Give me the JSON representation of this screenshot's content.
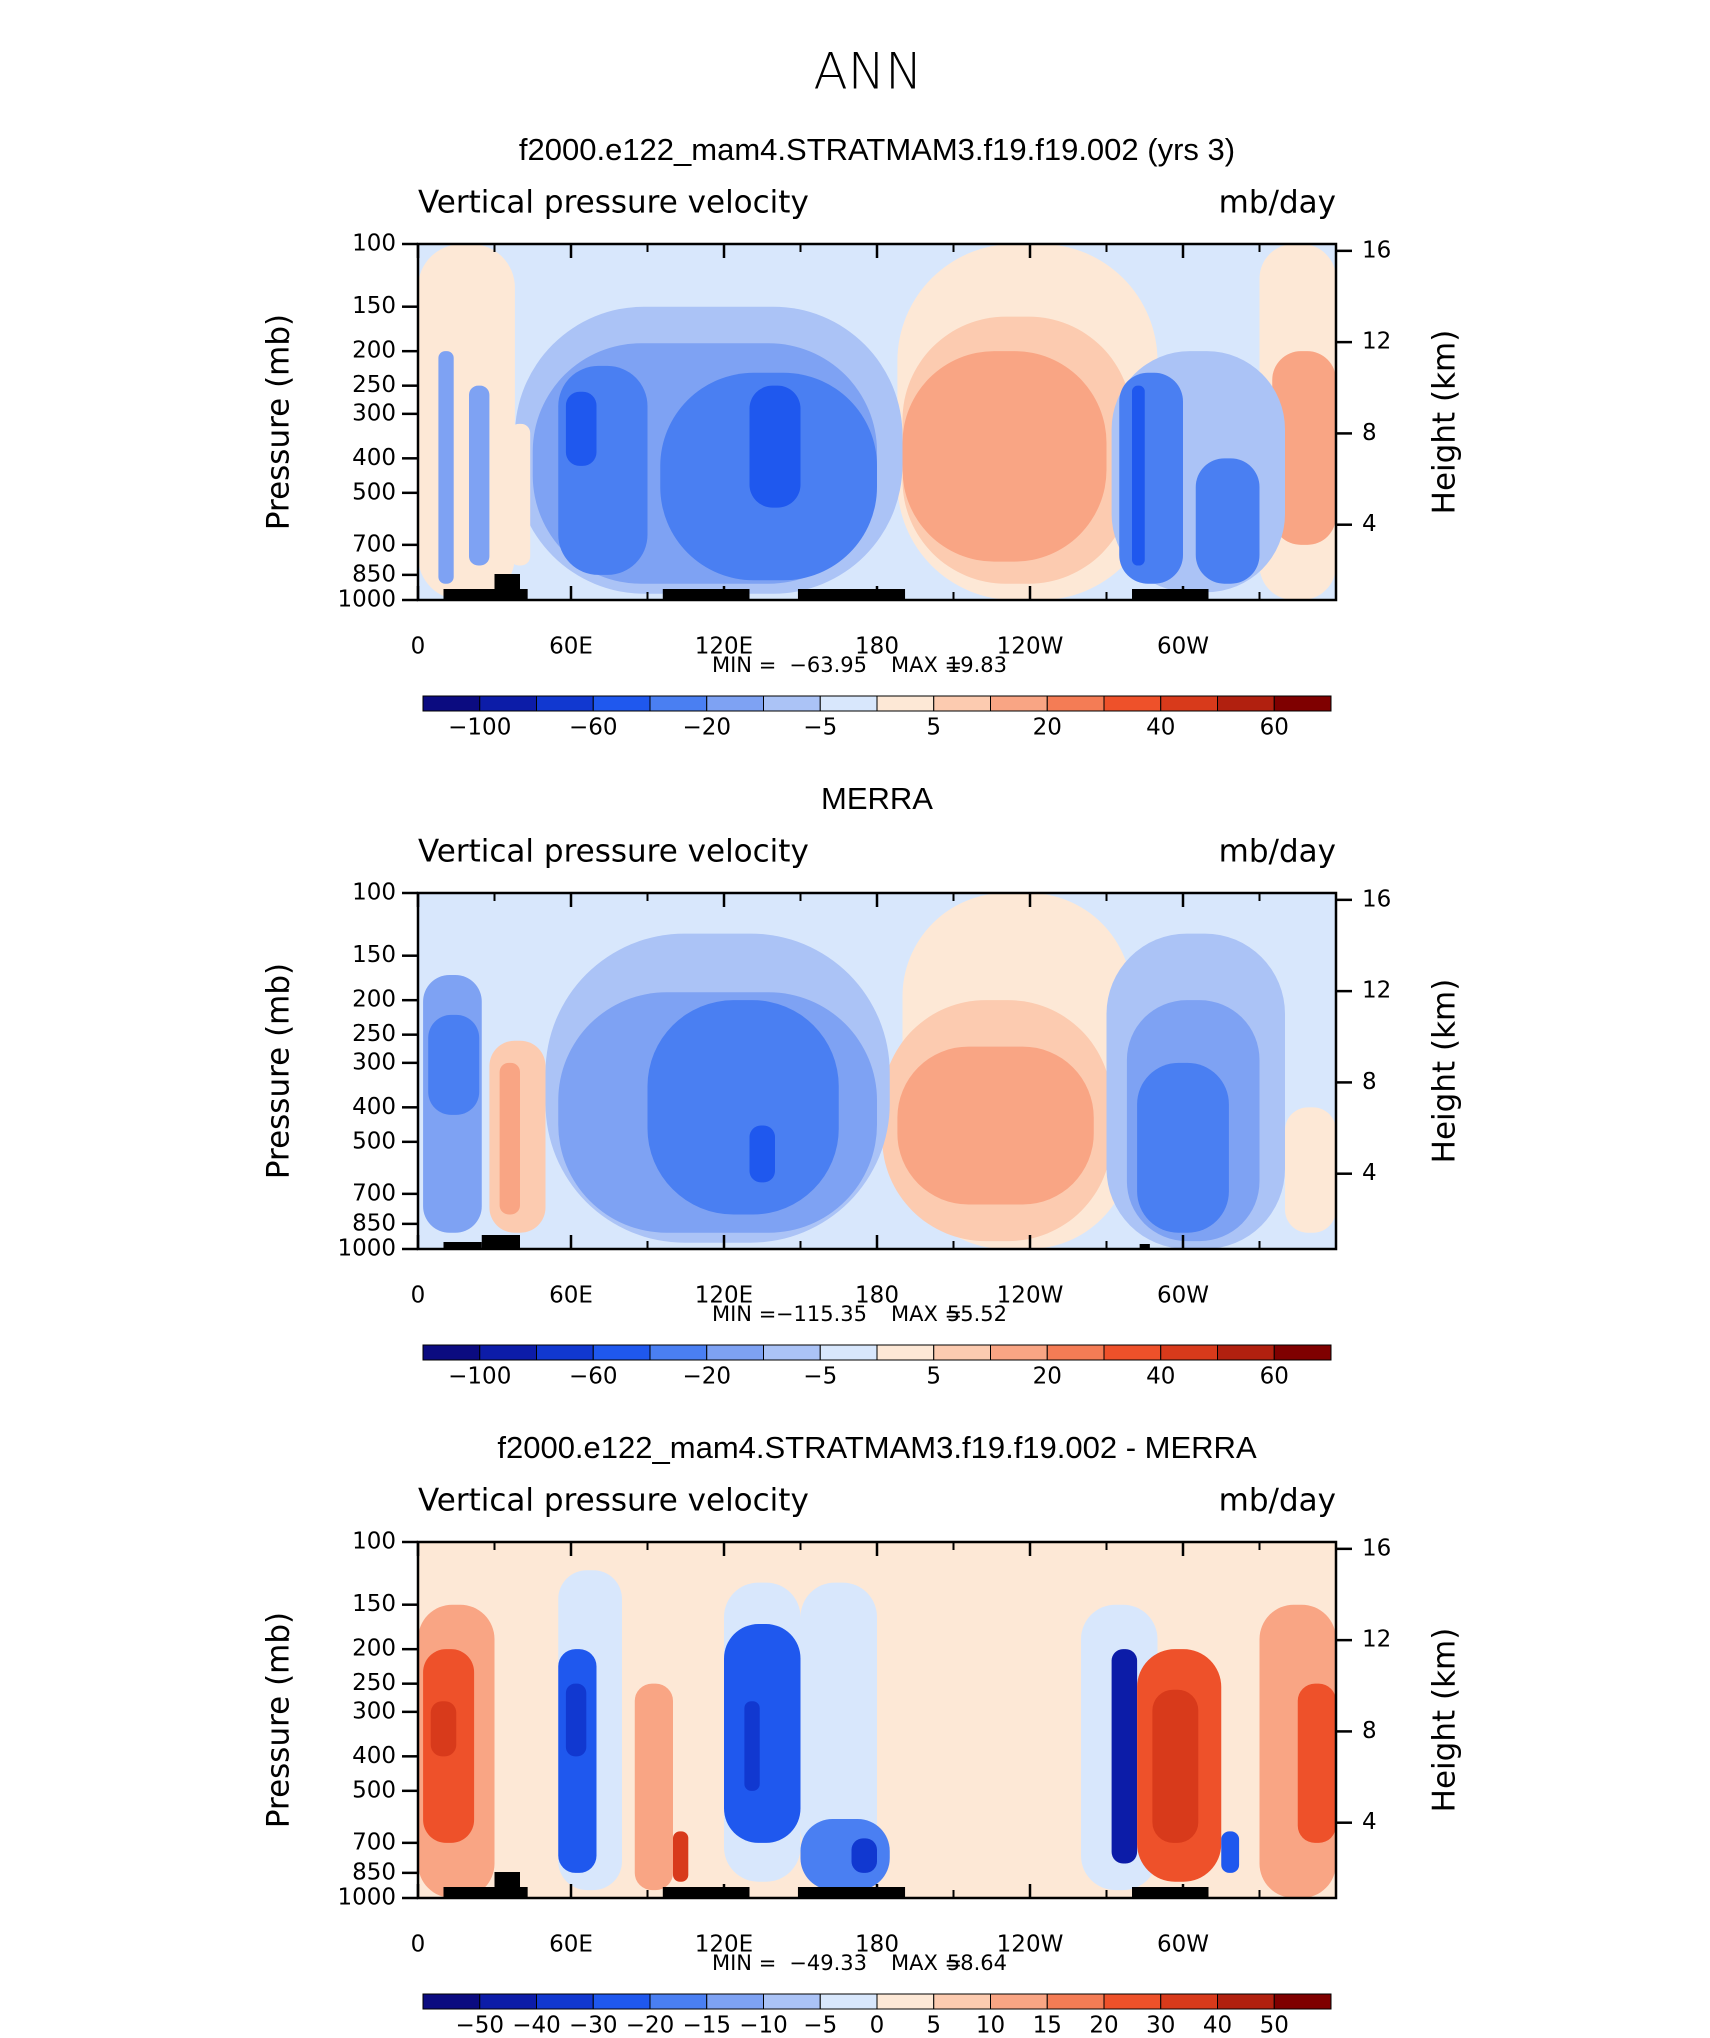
{
  "title": "ANN",
  "chart_data": [
    {
      "type": "contour",
      "title": "f2000.e122_mam4.STRATMAM3.f19.f19.002 (yrs 3)",
      "left_label": "Vertical pressure velocity",
      "right_label": "mb/day",
      "ylabel": "Pressure (mb)",
      "y2label": "Height (km)",
      "xlim": [
        0,
        360
      ],
      "xticks": [
        0,
        {
          "value": 60,
          "label": "60E"
        },
        {
          "value": 120,
          "label": "120E"
        },
        180,
        {
          "value": 240,
          "label": "120W"
        },
        {
          "value": 300,
          "label": "60W"
        }
      ],
      "minor_xticks": [
        30,
        90,
        150,
        210,
        270,
        330
      ],
      "ylim": [
        1000,
        100
      ],
      "y_log": true,
      "yticks": [
        100,
        150,
        200,
        250,
        300,
        400,
        500,
        700,
        850,
        1000
      ],
      "y2lim": [
        0.7,
        16.3
      ],
      "y2ticks": [
        16,
        12,
        8,
        4
      ],
      "stats": [
        {
          "label": "MIN =",
          "value": -63.95,
          "value_label": "−63.95"
        },
        {
          "label": "MAX =",
          "value": 19.83,
          "value_label": "19.83"
        }
      ],
      "colorbar": {
        "levels": [
          -100,
          -80,
          -60,
          -40,
          -20,
          -10,
          -5,
          0,
          5,
          10,
          20,
          30,
          40,
          50,
          60
        ],
        "colors": [
          "#0b0b80",
          "#0c1ca8",
          "#1138d0",
          "#1f58ee",
          "#4a7ff2",
          "#7ea2f3",
          "#abc3f6",
          "#d8e7fc",
          "#fde8d6",
          "#fccbb0",
          "#f9a584",
          "#f47c55",
          "#ee512a",
          "#d83a1b",
          "#b1200f",
          "#7f0000"
        ],
        "ticks": [
          {
            "value": -100,
            "label": "−100"
          },
          {
            "value": -60,
            "label": "−60"
          },
          {
            "value": -20,
            "label": "−20"
          },
          {
            "value": -5,
            "label": "−5"
          },
          5,
          20,
          40,
          60
        ]
      },
      "features": [
        {
          "lon": [
            0,
            360
          ],
          "p": [
            100,
            1000
          ],
          "value": -3
        },
        {
          "lon": [
            0,
            38
          ],
          "p": [
            100,
            1000
          ],
          "value": 3
        },
        {
          "lon": [
            188,
            290
          ],
          "p": [
            100,
            1000
          ],
          "value": 3
        },
        {
          "lon": [
            330,
            360
          ],
          "p": [
            100,
            1000
          ],
          "value": 3
        },
        {
          "lon": [
            190,
            280
          ],
          "p": [
            160,
            900
          ],
          "value": 7
        },
        {
          "lon": [
            190,
            270
          ],
          "p": [
            200,
            780
          ],
          "value": 15
        },
        {
          "lon": [
            335,
            360
          ],
          "p": [
            200,
            700
          ],
          "value": 15
        },
        {
          "lon": [
            38,
            190
          ],
          "p": [
            150,
            960
          ],
          "value": -7
        },
        {
          "lon": [
            45,
            180
          ],
          "p": [
            190,
            900
          ],
          "value": -15
        },
        {
          "lon": [
            55,
            90
          ],
          "p": [
            220,
            850
          ],
          "value": -30
        },
        {
          "lon": [
            95,
            180
          ],
          "p": [
            230,
            880
          ],
          "value": -30
        },
        {
          "lon": [
            58,
            70
          ],
          "p": [
            260,
            420
          ],
          "value": -50
        },
        {
          "lon": [
            130,
            150
          ],
          "p": [
            250,
            550
          ],
          "value": -50
        },
        {
          "lon": [
            8,
            14
          ],
          "p": [
            200,
            900
          ],
          "value": -15
        },
        {
          "lon": [
            20,
            28
          ],
          "p": [
            250,
            800
          ],
          "value": -15
        },
        {
          "lon": [
            36,
            44
          ],
          "p": [
            320,
            800
          ],
          "value": 5
        },
        {
          "lon": [
            272,
            340
          ],
          "p": [
            200,
            950
          ],
          "value": -7
        },
        {
          "lon": [
            275,
            300
          ],
          "p": [
            230,
            900
          ],
          "value": -30
        },
        {
          "lon": [
            280,
            285
          ],
          "p": [
            250,
            800
          ],
          "value": -50
        },
        {
          "lon": [
            305,
            330
          ],
          "p": [
            400,
            900
          ],
          "value": -30
        }
      ]
    },
    {
      "type": "contour",
      "title": "MERRA",
      "left_label": "Vertical pressure velocity",
      "right_label": "mb/day",
      "ylabel": "Pressure (mb)",
      "y2label": "Height (km)",
      "xlim": [
        0,
        360
      ],
      "xticks": [
        0,
        {
          "value": 60,
          "label": "60E"
        },
        {
          "value": 120,
          "label": "120E"
        },
        180,
        {
          "value": 240,
          "label": "120W"
        },
        {
          "value": 300,
          "label": "60W"
        }
      ],
      "minor_xticks": [
        30,
        90,
        150,
        210,
        270,
        330
      ],
      "ylim": [
        1000,
        100
      ],
      "y_log": true,
      "yticks": [
        100,
        150,
        200,
        250,
        300,
        400,
        500,
        700,
        850,
        1000
      ],
      "y2lim": [
        0.7,
        16.3
      ],
      "y2ticks": [
        16,
        12,
        8,
        4
      ],
      "stats": [
        {
          "label": "MIN =",
          "value": -115.35,
          "value_label": "−115.35"
        },
        {
          "label": "MAX =",
          "value": 55.52,
          "value_label": "55.52"
        }
      ],
      "colorbar": {
        "levels": [
          -100,
          -80,
          -60,
          -40,
          -20,
          -10,
          -5,
          0,
          5,
          10,
          20,
          30,
          40,
          50,
          60
        ],
        "colors": [
          "#0b0b80",
          "#0c1ca8",
          "#1138d0",
          "#1f58ee",
          "#4a7ff2",
          "#7ea2f3",
          "#abc3f6",
          "#d8e7fc",
          "#fde8d6",
          "#fccbb0",
          "#f9a584",
          "#f47c55",
          "#ee512a",
          "#d83a1b",
          "#b1200f",
          "#7f0000"
        ],
        "ticks": [
          {
            "value": -100,
            "label": "−100"
          },
          {
            "value": -60,
            "label": "−60"
          },
          {
            "value": -20,
            "label": "−20"
          },
          {
            "value": -5,
            "label": "−5"
          },
          5,
          20,
          40,
          60
        ]
      },
      "features": [
        {
          "lon": [
            0,
            360
          ],
          "p": [
            100,
            1000
          ],
          "value": -3
        },
        {
          "lon": [
            190,
            280
          ],
          "p": [
            100,
            1000
          ],
          "value": 3
        },
        {
          "lon": [
            340,
            360
          ],
          "p": [
            400,
            900
          ],
          "value": 3
        },
        {
          "lon": [
            182,
            272
          ],
          "p": [
            200,
            950
          ],
          "value": 7
        },
        {
          "lon": [
            188,
            265
          ],
          "p": [
            270,
            750
          ],
          "value": 15
        },
        {
          "lon": [
            50,
            185
          ],
          "p": [
            130,
            960
          ],
          "value": -7
        },
        {
          "lon": [
            55,
            180
          ],
          "p": [
            190,
            900
          ],
          "value": -15
        },
        {
          "lon": [
            90,
            165
          ],
          "p": [
            200,
            800
          ],
          "value": -30
        },
        {
          "lon": [
            130,
            140
          ],
          "p": [
            450,
            650
          ],
          "value": -50
        },
        {
          "lon": [
            2,
            25
          ],
          "p": [
            170,
            900
          ],
          "value": -15
        },
        {
          "lon": [
            4,
            24
          ],
          "p": [
            220,
            420
          ],
          "value": -30
        },
        {
          "lon": [
            28,
            50
          ],
          "p": [
            260,
            900
          ],
          "value": 10
        },
        {
          "lon": [
            32,
            40
          ],
          "p": [
            300,
            800
          ],
          "value": 20
        },
        {
          "lon": [
            270,
            340
          ],
          "p": [
            130,
            1000
          ],
          "value": -7
        },
        {
          "lon": [
            278,
            330
          ],
          "p": [
            200,
            950
          ],
          "value": -15
        },
        {
          "lon": [
            282,
            318
          ],
          "p": [
            300,
            900
          ],
          "value": -30
        }
      ]
    },
    {
      "type": "contour",
      "title": "f2000.e122_mam4.STRATMAM3.f19.f19.002 - MERRA",
      "left_label": "Vertical pressure velocity",
      "right_label": "mb/day",
      "ylabel": "Pressure (mb)",
      "y2label": "Height (km)",
      "xlim": [
        0,
        360
      ],
      "xticks": [
        0,
        {
          "value": 60,
          "label": "60E"
        },
        {
          "value": 120,
          "label": "120E"
        },
        180,
        {
          "value": 240,
          "label": "120W"
        },
        {
          "value": 300,
          "label": "60W"
        }
      ],
      "minor_xticks": [
        30,
        90,
        150,
        210,
        270,
        330
      ],
      "ylim": [
        1000,
        100
      ],
      "y_log": true,
      "yticks": [
        100,
        150,
        200,
        250,
        300,
        400,
        500,
        700,
        850,
        1000
      ],
      "y2lim": [
        0.7,
        16.3
      ],
      "y2ticks": [
        16,
        12,
        8,
        4
      ],
      "stats": [
        {
          "label": "MIN =",
          "value": -49.33,
          "value_label": "−49.33"
        },
        {
          "label": "MAX =",
          "value": 58.64,
          "value_label": "58.64"
        }
      ],
      "colorbar": {
        "levels": [
          -50,
          -40,
          -30,
          -20,
          -15,
          -10,
          -5,
          0,
          5,
          10,
          15,
          20,
          30,
          40,
          50
        ],
        "colors": [
          "#0b0b80",
          "#0c1ca8",
          "#1138d0",
          "#1f58ee",
          "#4a7ff2",
          "#7ea2f3",
          "#abc3f6",
          "#d8e7fc",
          "#fde8d6",
          "#fccbb0",
          "#f9a584",
          "#f47c55",
          "#ee512a",
          "#d83a1b",
          "#b1200f",
          "#7f0000"
        ],
        "ticks": [
          {
            "value": -50,
            "label": "−50"
          },
          {
            "value": -40,
            "label": "−40"
          },
          {
            "value": -30,
            "label": "−30"
          },
          {
            "value": -20,
            "label": "−20"
          },
          {
            "value": -15,
            "label": "−15"
          },
          {
            "value": -10,
            "label": "−10"
          },
          {
            "value": -5,
            "label": "−5"
          },
          0,
          5,
          10,
          15,
          20,
          30,
          40,
          50
        ]
      },
      "features": [
        {
          "lon": [
            0,
            360
          ],
          "p": [
            100,
            1000
          ],
          "value": 2
        },
        {
          "lon": [
            260,
            290
          ],
          "p": [
            150,
            950
          ],
          "value": -3
        },
        {
          "lon": [
            150,
            180
          ],
          "p": [
            130,
            800
          ],
          "value": -3
        },
        {
          "lon": [
            55,
            80
          ],
          "p": [
            120,
            950
          ],
          "value": -3
        },
        {
          "lon": [
            120,
            150
          ],
          "p": [
            130,
            900
          ],
          "value": -3
        },
        {
          "lon": [
            0,
            30
          ],
          "p": [
            150,
            1000
          ],
          "value": 12
        },
        {
          "lon": [
            2,
            22
          ],
          "p": [
            200,
            700
          ],
          "value": 25
        },
        {
          "lon": [
            5,
            15
          ],
          "p": [
            280,
            400
          ],
          "value": 35
        },
        {
          "lon": [
            55,
            70
          ],
          "p": [
            200,
            850
          ],
          "value": -25
        },
        {
          "lon": [
            58,
            66
          ],
          "p": [
            250,
            400
          ],
          "value": -35
        },
        {
          "lon": [
            85,
            100
          ],
          "p": [
            250,
            950
          ],
          "value": 12
        },
        {
          "lon": [
            100,
            106
          ],
          "p": [
            650,
            900
          ],
          "value": 35
        },
        {
          "lon": [
            120,
            150
          ],
          "p": [
            170,
            700
          ],
          "value": -20
        },
        {
          "lon": [
            128,
            134
          ],
          "p": [
            280,
            500
          ],
          "value": -35
        },
        {
          "lon": [
            150,
            185
          ],
          "p": [
            600,
            950
          ],
          "value": -15
        },
        {
          "lon": [
            170,
            180
          ],
          "p": [
            680,
            850
          ],
          "value": -30
        },
        {
          "lon": [
            272,
            282
          ],
          "p": [
            200,
            800
          ],
          "value": -40
        },
        {
          "lon": [
            282,
            315
          ],
          "p": [
            200,
            900
          ],
          "value": 25
        },
        {
          "lon": [
            288,
            306
          ],
          "p": [
            260,
            700
          ],
          "value": 35
        },
        {
          "lon": [
            330,
            360
          ],
          "p": [
            150,
            1000
          ],
          "value": 12
        },
        {
          "lon": [
            345,
            360
          ],
          "p": [
            250,
            700
          ],
          "value": 25
        },
        {
          "lon": [
            315,
            322
          ],
          "p": [
            650,
            850
          ],
          "value": -20
        }
      ]
    }
  ]
}
